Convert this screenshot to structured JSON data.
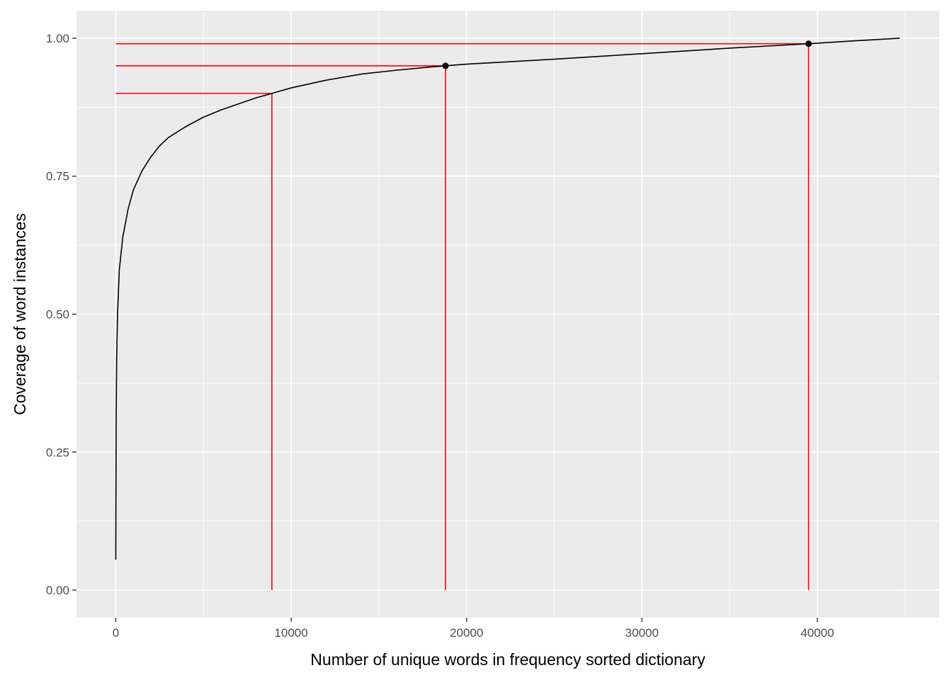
{
  "chart_data": {
    "type": "line",
    "title": "",
    "xlabel": "Number of unique words in frequency sorted dictionary",
    "ylabel": "Coverage of word instances",
    "xlim": [
      -2240,
      46950
    ],
    "ylim": [
      -0.05,
      1.05
    ],
    "x_ticks": [
      0,
      10000,
      20000,
      30000,
      40000
    ],
    "x_tick_labels": [
      "0",
      "10000",
      "20000",
      "30000",
      "40000"
    ],
    "y_ticks": [
      0,
      0.25,
      0.5,
      0.75,
      1.0
    ],
    "y_tick_labels": [
      "0.00",
      "0.25",
      "0.50",
      "0.75",
      "1.00"
    ],
    "grid": true,
    "background": "#ebebeb",
    "grid_color": "#ffffff",
    "series": [
      {
        "color": "#000000",
        "x": [
          0,
          20,
          50,
          100,
          200,
          400,
          700,
          1000,
          1500,
          2000,
          2500,
          3000,
          4000,
          5000,
          6000,
          7000,
          8000,
          8900,
          10000,
          12000,
          14000,
          16000,
          18000,
          18800,
          20000,
          25000,
          30000,
          35000,
          39500,
          42000,
          44700
        ],
        "y": [
          0.055,
          0.3,
          0.42,
          0.5,
          0.58,
          0.64,
          0.69,
          0.725,
          0.76,
          0.785,
          0.805,
          0.82,
          0.84,
          0.857,
          0.87,
          0.881,
          0.892,
          0.9,
          0.91,
          0.924,
          0.935,
          0.942,
          0.948,
          0.95,
          0.953,
          0.962,
          0.972,
          0.982,
          0.99,
          0.995,
          1.0
        ]
      }
    ],
    "reference_color": "#ff0000",
    "reference_lines": [
      {
        "coverage": 0.9,
        "words": 8900
      },
      {
        "coverage": 0.95,
        "words": 18800
      },
      {
        "coverage": 0.99,
        "words": 39500
      }
    ],
    "highlighted_points": [
      {
        "x": 18800,
        "y": 0.95
      },
      {
        "x": 39500,
        "y": 0.99
      }
    ]
  }
}
